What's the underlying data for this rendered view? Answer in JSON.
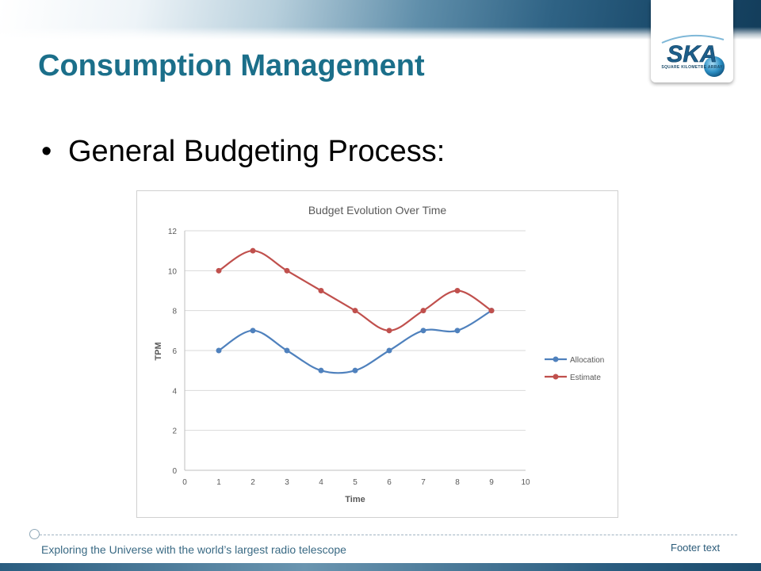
{
  "slide": {
    "title": "Consumption Management",
    "bullet": "General Budgeting Process:"
  },
  "logo": {
    "text": "SKA",
    "subtext": "SQUARE KILOMETRE ARRAY"
  },
  "footer": {
    "tagline": "Exploring the Universe with the world’s largest radio telescope",
    "text": "Footer text"
  },
  "colors": {
    "title": "#1b6f8a",
    "allocation": "#4f81bd",
    "estimate": "#c0504d"
  },
  "chart_data": {
    "type": "line",
    "title": "Budget Evolution Over Time",
    "xlabel": "Time",
    "ylabel": "TPM",
    "xlim": [
      0,
      10
    ],
    "ylim": [
      0,
      12
    ],
    "xticks": [
      0,
      1,
      2,
      3,
      4,
      5,
      6,
      7,
      8,
      9,
      10
    ],
    "yticks": [
      0,
      2,
      4,
      6,
      8,
      10,
      12
    ],
    "grid": true,
    "legend_position": "right",
    "x": [
      1,
      2,
      3,
      4,
      5,
      6,
      7,
      8,
      9
    ],
    "series": [
      {
        "name": "Allocation",
        "color": "#4f81bd",
        "values": [
          6,
          7,
          6,
          5,
          5,
          6,
          7,
          7,
          8
        ]
      },
      {
        "name": "Estimate",
        "color": "#c0504d",
        "values": [
          10,
          11,
          10,
          9,
          8,
          7,
          8,
          9,
          8
        ]
      }
    ]
  }
}
